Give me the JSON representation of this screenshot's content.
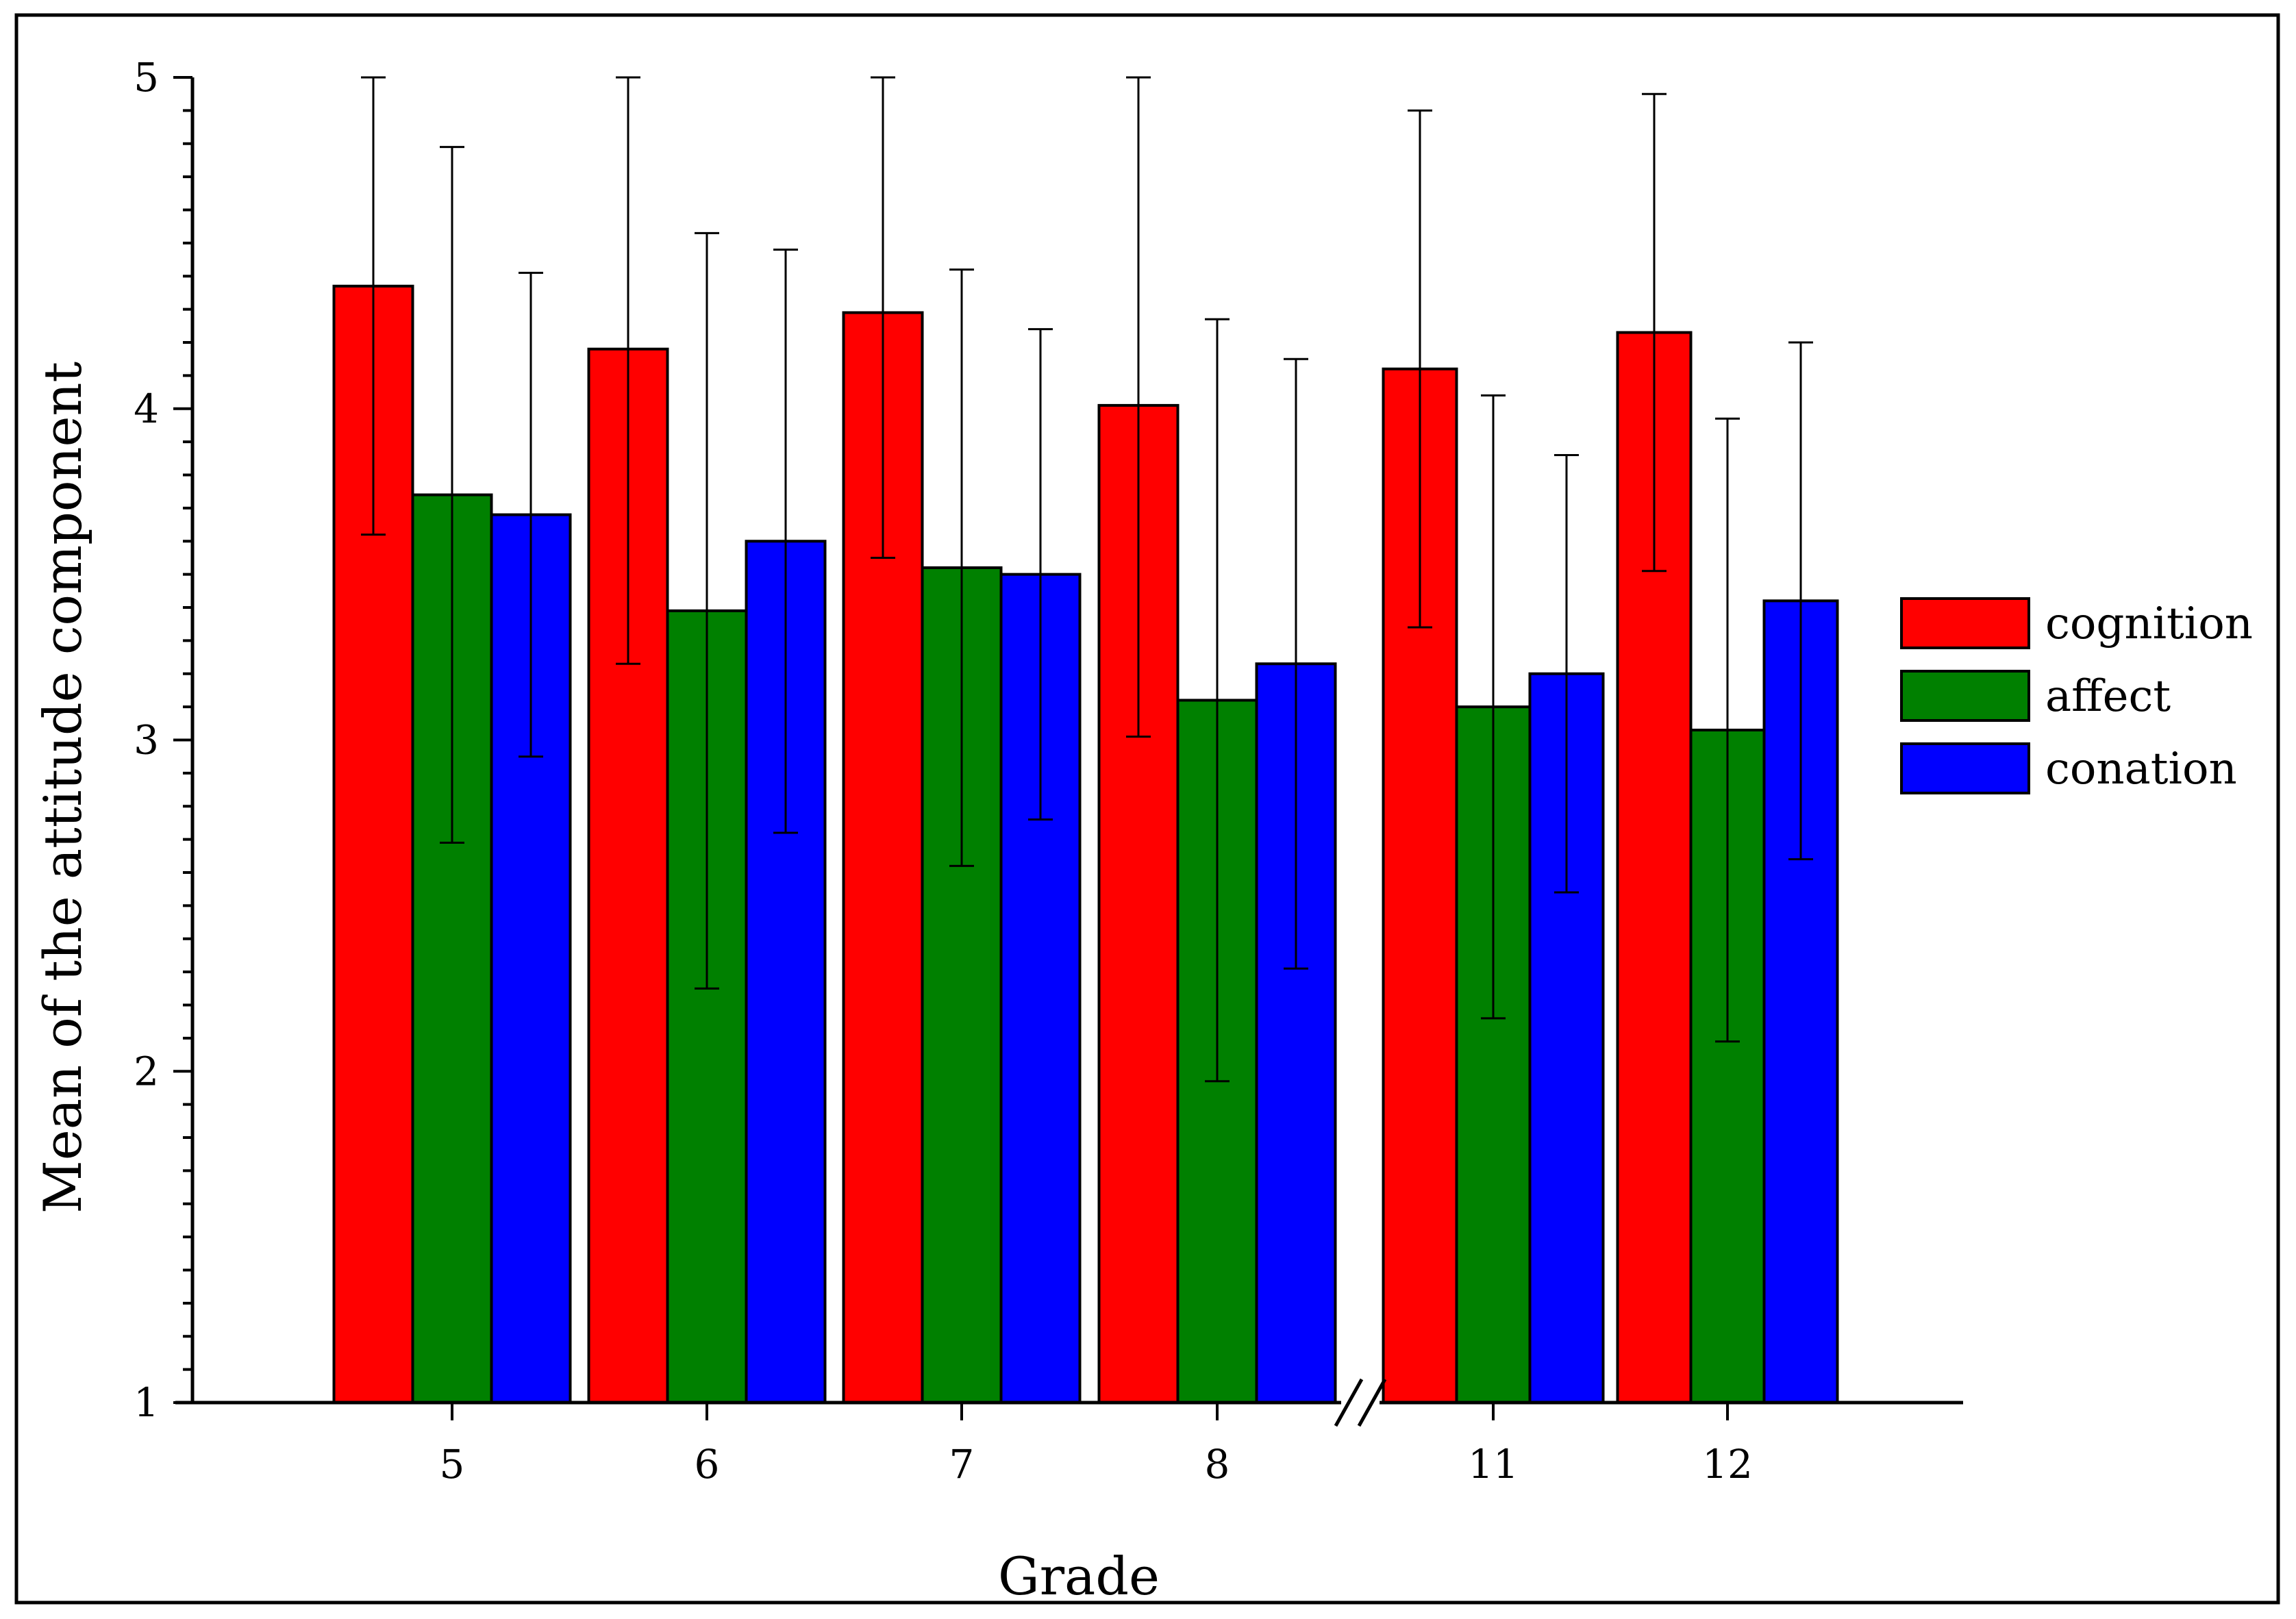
{
  "chart_data": {
    "type": "bar",
    "title": "",
    "xlabel": "Grade",
    "ylabel": "Mean of the attitude component",
    "ylim": [
      1,
      5
    ],
    "yticks": [
      "1",
      "2",
      "3",
      "4",
      "5"
    ],
    "categories": [
      "5",
      "6",
      "7",
      "8",
      "11",
      "12"
    ],
    "axis_break_after_category": "8",
    "legend_position": "right",
    "grid": false,
    "series": [
      {
        "name": "cognition",
        "color": "#ff0000",
        "values": [
          4.37,
          4.18,
          4.29,
          4.01,
          4.12,
          4.23
        ],
        "error": [
          0.75,
          0.95,
          0.74,
          1.0,
          0.78,
          0.72
        ]
      },
      {
        "name": "affect",
        "color": "#008000",
        "values": [
          3.74,
          3.39,
          3.52,
          3.12,
          3.1,
          3.03
        ],
        "error": [
          1.05,
          1.14,
          0.9,
          1.15,
          0.94,
          0.94
        ]
      },
      {
        "name": "conation",
        "color": "#0000ff",
        "values": [
          3.68,
          3.6,
          3.5,
          3.23,
          3.2,
          3.42
        ],
        "error": [
          0.73,
          0.88,
          0.74,
          0.92,
          0.66,
          0.78
        ]
      }
    ]
  }
}
